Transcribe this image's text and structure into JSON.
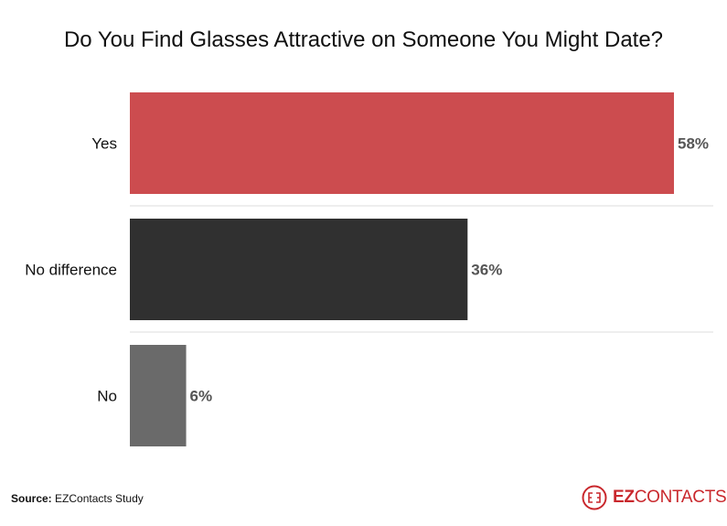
{
  "chart_data": {
    "type": "bar",
    "orientation": "horizontal",
    "title": "Do You Find Glasses Attractive on Someone You Might Date?",
    "categories": [
      "Yes",
      "No difference",
      "No"
    ],
    "values": [
      58,
      36,
      6
    ],
    "data_labels": [
      "58%",
      "36%",
      "6%"
    ],
    "colors": [
      "#cc4c4f",
      "#303030",
      "#6a6a6a"
    ],
    "xlim": [
      0,
      58
    ],
    "grid": false,
    "xlabel": "",
    "ylabel": ""
  },
  "source": {
    "label": "Source:",
    "text": "EZContacts Study"
  },
  "logo": {
    "text_bold": "EZ",
    "text_rest": "CONTACTS",
    "color": "#c9282d"
  }
}
